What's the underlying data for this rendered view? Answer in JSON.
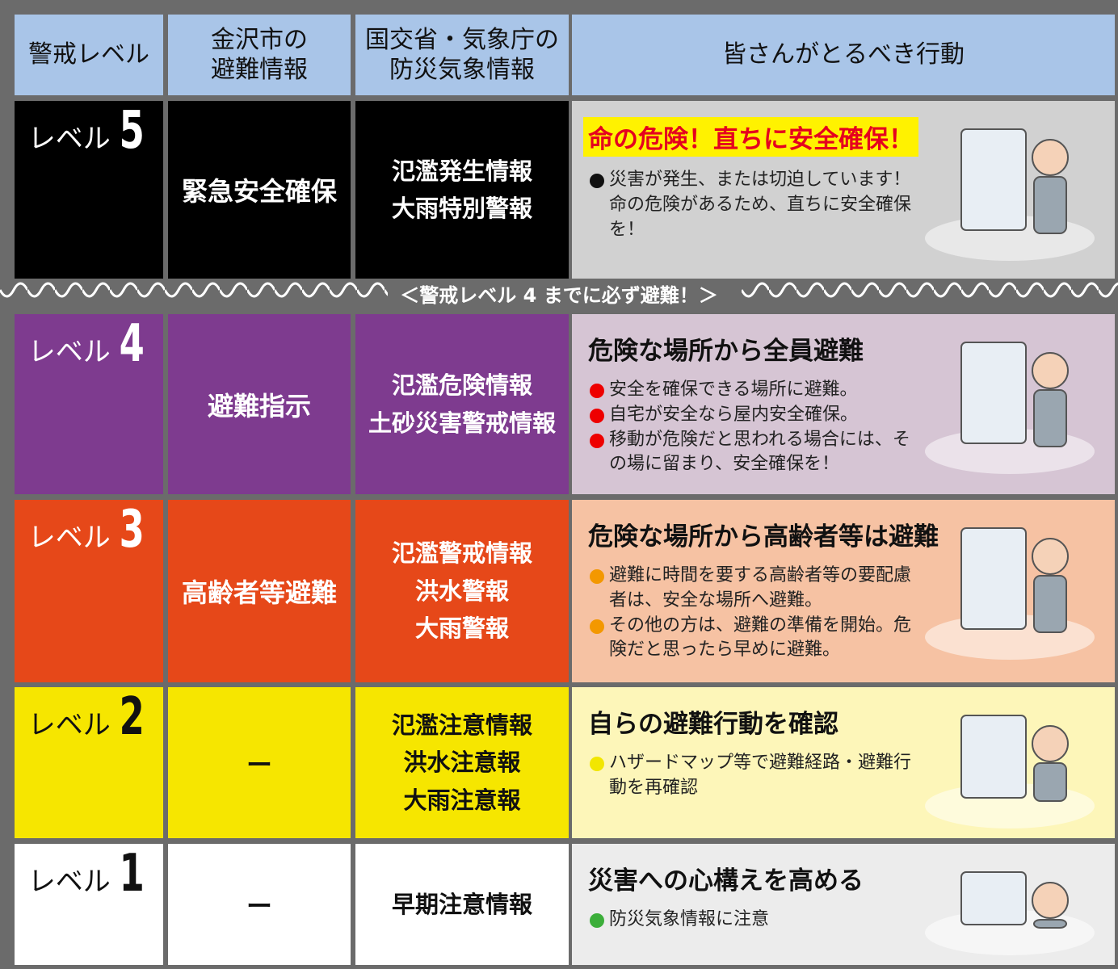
{
  "header": {
    "columns": [
      [
        "警戒レベル"
      ],
      [
        "金沢市の",
        "避難情報"
      ],
      [
        "国交省・気象庁の",
        "防災気象情報"
      ],
      [
        "皆さんがとるべき行動"
      ]
    ]
  },
  "banner": "＜警戒レベル 4 までに必ず避難！＞",
  "rows": [
    {
      "level_word": "レベル",
      "level_number": "5",
      "city_info": "緊急安全確保",
      "weather_info": [
        "氾濫発生情報",
        "大雨特別警報"
      ],
      "action_title": "命の危険！直ちに安全確保！",
      "action_items": [
        "災害が発生、または切迫しています！命の危険があるため、直ちに安全確保を！"
      ]
    },
    {
      "level_word": "レベル",
      "level_number": "4",
      "city_info": "避難指示",
      "weather_info": [
        "氾濫危険情報",
        "土砂災害警戒情報"
      ],
      "action_title": "危険な場所から全員避難",
      "action_items": [
        "安全を確保できる場所に避難。",
        "自宅が安全なら屋内安全確保。",
        "移動が危険だと思われる場合には、その場に留まり、安全確保を！"
      ]
    },
    {
      "level_word": "レベル",
      "level_number": "3",
      "city_info": "高齢者等避難",
      "weather_info": [
        "氾濫警戒情報",
        "洪水警報",
        "大雨警報"
      ],
      "action_title": "危険な場所から高齢者等は避難",
      "action_items": [
        "避難に時間を要する高齢者等の要配慮者は、安全な場所へ避難。",
        "その他の方は、避難の準備を開始。危険だと思ったら早めに避難。"
      ]
    },
    {
      "level_word": "レベル",
      "level_number": "2",
      "city_info": "ー",
      "weather_info": [
        "氾濫注意情報",
        "洪水注意報",
        "大雨注意報"
      ],
      "action_title": "自らの避難行動を確認",
      "action_items": [
        "ハザードマップ等で避難経路・避難行動を再確認"
      ]
    },
    {
      "level_word": "レベル",
      "level_number": "1",
      "city_info": "ー",
      "weather_info": [
        "早期注意情報"
      ],
      "action_title": "災害への心構えを高める",
      "action_items": [
        "防災気象情報に注意"
      ]
    }
  ]
}
